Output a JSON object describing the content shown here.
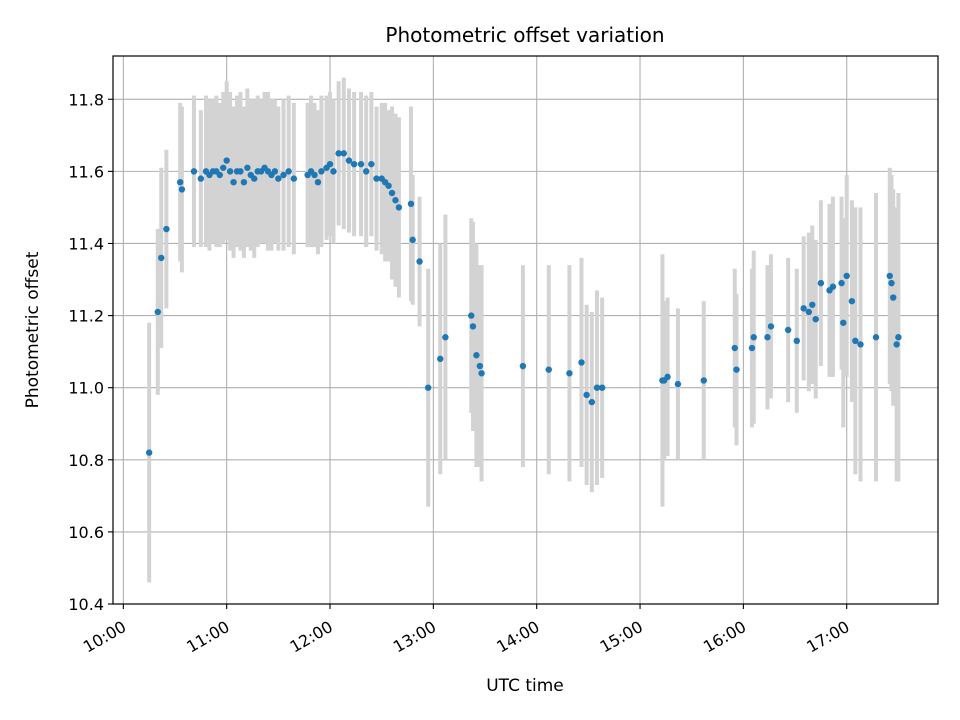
{
  "chart_data": {
    "type": "scatter",
    "title": "Photometric offset variation",
    "xlabel": "UTC time",
    "ylabel": "Photometric offset",
    "x_axis": {
      "kind": "time",
      "range": [
        "09:54",
        "17:53"
      ],
      "ticks": [
        "10:00",
        "11:00",
        "12:00",
        "13:00",
        "14:00",
        "15:00",
        "16:00",
        "17:00"
      ]
    },
    "y_axis": {
      "range": [
        10.4,
        11.92
      ],
      "ticks": [
        "10.4",
        "10.6",
        "10.8",
        "11.0",
        "11.2",
        "11.4",
        "11.6",
        "11.8"
      ]
    },
    "grid": true,
    "colors": {
      "points": "#1f77b4",
      "errorbars": "#d3d3d3",
      "grid": "#b0b0b0"
    },
    "series": [
      {
        "x": [
          "10:15",
          "10:20",
          "10:22",
          "10:25",
          "10:33",
          "10:34",
          "10:41",
          "10:45",
          "10:48",
          "10:50",
          "10:52",
          "10:54",
          "10:56",
          "10:58",
          "11:00",
          "11:02",
          "11:04",
          "11:06",
          "11:08",
          "11:10",
          "11:12",
          "11:14",
          "11:16",
          "11:18",
          "11:20",
          "11:22",
          "11:24",
          "11:26",
          "11:28",
          "11:30",
          "11:33",
          "11:36",
          "11:39",
          "11:47",
          "11:49",
          "11:51",
          "11:53",
          "11:55",
          "11:58",
          "12:00",
          "12:02",
          "12:05",
          "12:08",
          "12:11",
          "12:14",
          "12:18",
          "12:21",
          "12:24",
          "12:27",
          "12:30",
          "12:32",
          "12:34",
          "12:36",
          "12:38",
          "12:40",
          "12:47",
          "12:48",
          "12:52",
          "12:57",
          "13:04",
          "13:07",
          "13:22",
          "13:23",
          "13:25",
          "13:27",
          "13:28",
          "13:52",
          "14:07",
          "14:19",
          "14:26",
          "14:29",
          "14:32",
          "14:35",
          "14:38",
          "15:13",
          "15:14",
          "15:16",
          "15:22",
          "15:37",
          "15:55",
          "15:56",
          "16:05",
          "16:06",
          "16:14",
          "16:16",
          "16:26",
          "16:31",
          "16:35",
          "16:38",
          "16:40",
          "16:42",
          "16:45",
          "16:50",
          "16:52",
          "16:57",
          "16:58",
          "17:00",
          "17:03",
          "17:05",
          "17:08",
          "17:17",
          "17:25",
          "17:26",
          "17:27",
          "17:29",
          "17:30"
        ],
        "y": [
          10.82,
          11.21,
          11.36,
          11.44,
          11.57,
          11.55,
          11.6,
          11.58,
          11.6,
          11.59,
          11.6,
          11.6,
          11.59,
          11.61,
          11.63,
          11.6,
          11.57,
          11.6,
          11.6,
          11.57,
          11.61,
          11.59,
          11.58,
          11.6,
          11.6,
          11.61,
          11.6,
          11.59,
          11.6,
          11.58,
          11.59,
          11.6,
          11.58,
          11.59,
          11.6,
          11.59,
          11.57,
          11.6,
          11.61,
          11.62,
          11.6,
          11.65,
          11.65,
          11.63,
          11.62,
          11.62,
          11.6,
          11.62,
          11.58,
          11.58,
          11.57,
          11.56,
          11.54,
          11.52,
          11.5,
          11.51,
          11.41,
          11.35,
          11.0,
          11.08,
          11.14,
          11.2,
          11.17,
          11.09,
          11.06,
          11.04,
          11.06,
          11.05,
          11.04,
          11.07,
          10.98,
          10.96,
          11.0,
          11.0,
          11.02,
          11.02,
          11.03,
          11.01,
          11.02,
          11.11,
          11.05,
          11.11,
          11.14,
          11.14,
          11.17,
          11.16,
          11.13,
          11.22,
          11.21,
          11.23,
          11.19,
          11.29,
          11.27,
          11.28,
          11.29,
          11.18,
          11.31,
          11.24,
          11.13,
          11.12,
          11.14,
          11.31,
          11.29,
          11.25,
          11.12,
          11.14
        ],
        "err": [
          0.36,
          0.23,
          0.25,
          0.22,
          0.22,
          0.23,
          0.21,
          0.19,
          0.21,
          0.21,
          0.2,
          0.21,
          0.2,
          0.21,
          0.22,
          0.22,
          0.21,
          0.21,
          0.22,
          0.21,
          0.22,
          0.21,
          0.22,
          0.21,
          0.2,
          0.21,
          0.22,
          0.21,
          0.2,
          0.2,
          0.21,
          0.21,
          0.21,
          0.2,
          0.21,
          0.2,
          0.2,
          0.21,
          0.2,
          0.2,
          0.2,
          0.2,
          0.21,
          0.2,
          0.2,
          0.2,
          0.21,
          0.2,
          0.2,
          0.21,
          0.22,
          0.21,
          0.24,
          0.24,
          0.25,
          0.27,
          0.18,
          0.18,
          0.33,
          0.32,
          0.34,
          0.27,
          0.29,
          0.31,
          0.28,
          0.3,
          0.28,
          0.29,
          0.3,
          0.29,
          0.25,
          0.25,
          0.27,
          0.25,
          0.35,
          0.22,
          0.22,
          0.21,
          0.22,
          0.22,
          0.21,
          0.22,
          0.24,
          0.2,
          0.2,
          0.2,
          0.2,
          0.2,
          0.22,
          0.22,
          0.22,
          0.23,
          0.24,
          0.25,
          0.24,
          0.29,
          0.28,
          0.28,
          0.37,
          0.38,
          0.4,
          0.3,
          0.3,
          0.3,
          0.38,
          0.4
        ]
      }
    ]
  }
}
